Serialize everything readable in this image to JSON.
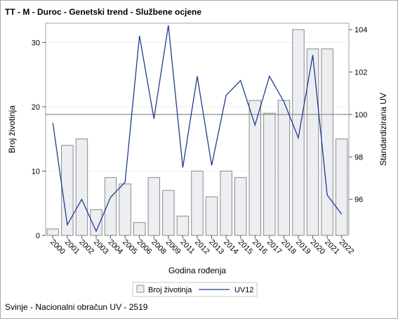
{
  "title": "TT - M - Duroc - Genetski trend - Službene ocjene",
  "footnote": "Svinje - Nacionalni obračun UV - 2519",
  "chart_data": {
    "type": "bar+line",
    "categories": [
      "2000",
      "2001",
      "2002",
      "2003",
      "2004",
      "2005",
      "2006",
      "2008",
      "2009",
      "2011",
      "2012",
      "2013",
      "2014",
      "2015",
      "2016",
      "2017",
      "2018",
      "2019",
      "2020",
      "2021",
      "2022"
    ],
    "series": [
      {
        "name": "Broj životinja",
        "type": "bar",
        "axis": "left",
        "color": "#eceef2",
        "values": [
          1,
          14,
          15,
          4,
          9,
          8,
          2,
          9,
          7,
          3,
          10,
          6,
          10,
          9,
          21,
          19,
          21,
          32,
          29,
          29,
          15
        ]
      },
      {
        "name": "UV12",
        "type": "line",
        "axis": "right",
        "color": "#1f3d8f",
        "values": [
          99.6,
          94.8,
          96.0,
          94.5,
          96.1,
          96.8,
          103.7,
          99.8,
          104.2,
          97.5,
          101.8,
          97.6,
          100.9,
          101.6,
          99.5,
          101.8,
          100.6,
          98.9,
          102.8,
          96.2,
          95.3
        ]
      }
    ],
    "xlabel": "Godina rođenja",
    "ylabel": "Broj životinja",
    "y2label": "Standardizirana UV",
    "ylim": [
      0,
      33
    ],
    "y_ticks": [
      0,
      10,
      20,
      30
    ],
    "y2lim": [
      94.3,
      104.3
    ],
    "y2_ticks": [
      96,
      98,
      100,
      102,
      104
    ],
    "reference_line_y2": 100,
    "legend": {
      "position": "bottom",
      "entries": [
        "Broj životinja",
        "UV12"
      ]
    }
  }
}
